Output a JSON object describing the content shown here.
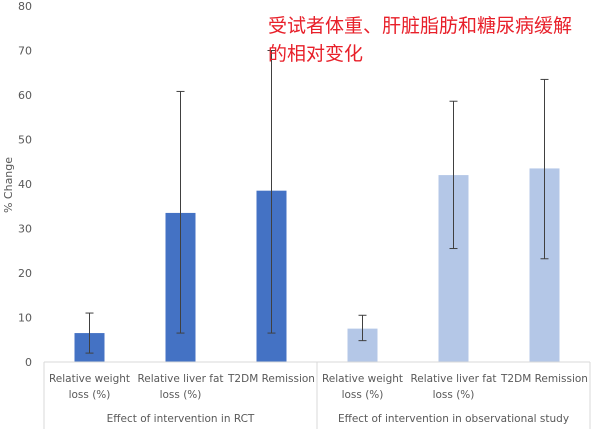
{
  "chart_data": {
    "type": "bar",
    "title": "受试者体重、肝脏脂肪和糖尿病缓解的相对变化",
    "ylabel": "% Change",
    "ylim": [
      0,
      80
    ],
    "yticks": [
      0,
      10,
      20,
      30,
      40,
      50,
      60,
      70,
      80
    ],
    "grid": false,
    "legend": "none",
    "groups": [
      {
        "name": "Effect of intervention in RCT",
        "color": "#4472c4",
        "bars": [
          {
            "category": [
              "Relative weight",
              "loss (%)"
            ],
            "value": 6.5,
            "err_low": 2.0,
            "err_high": 11.0
          },
          {
            "category": [
              "Relative liver fat",
              "loss (%)"
            ],
            "value": 33.5,
            "err_low": 6.5,
            "err_high": 60.8
          },
          {
            "category": [
              "T2DM Remission"
            ],
            "value": 38.5,
            "err_low": 6.5,
            "err_high": 70.0
          }
        ]
      },
      {
        "name": "Effect of intervention in observational study",
        "color": "#b4c7e7",
        "bars": [
          {
            "category": [
              "Relative weight",
              "loss (%)"
            ],
            "value": 7.5,
            "err_low": 4.8,
            "err_high": 10.5
          },
          {
            "category": [
              "Relative liver fat",
              "loss (%)"
            ],
            "value": 42.0,
            "err_low": 25.5,
            "err_high": 58.6
          },
          {
            "category": [
              "T2DM Remission"
            ],
            "value": 43.5,
            "err_low": 23.2,
            "err_high": 63.5
          }
        ]
      }
    ]
  }
}
